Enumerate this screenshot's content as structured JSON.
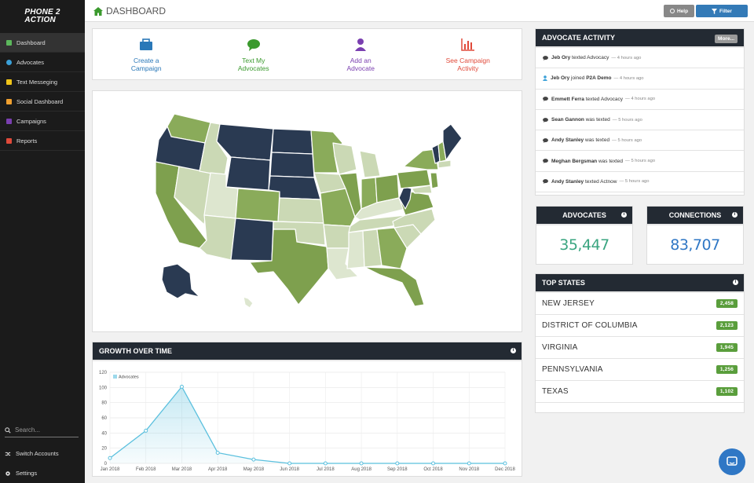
{
  "brand": {
    "line1": "PHONE 2",
    "line2": "ACTION"
  },
  "sidebar": {
    "items": [
      {
        "label": "Dashboard",
        "color": "#5cb85c",
        "active": true
      },
      {
        "label": "Advocates",
        "color": "#3aa0d8"
      },
      {
        "label": "Text Messeging",
        "color": "#f0c419"
      },
      {
        "label": "Social Dashboard",
        "color": "#f0a030"
      },
      {
        "label": "Campaigns",
        "color": "#7a3fb0"
      },
      {
        "label": "Reports",
        "color": "#e04a3a"
      }
    ],
    "search_placeholder": "Search...",
    "switch_accounts": "Switch Accounts",
    "settings": "Settings"
  },
  "header": {
    "title": "DASHBOARD",
    "help": "Help",
    "filter": "Filter"
  },
  "actions": [
    {
      "line1": "Create a",
      "line2": "Campaign",
      "color": "#2a78b8",
      "icon": "briefcase-icon"
    },
    {
      "line1": "Text My",
      "line2": "Advocates",
      "color": "#3b9a2e",
      "icon": "chat-icon"
    },
    {
      "line1": "Add an",
      "line2": "Advocate",
      "color": "#7a3fb0",
      "icon": "user-icon"
    },
    {
      "line1": "See Campaign",
      "line2": "Activity",
      "color": "#e04a3a",
      "icon": "bar-chart-icon"
    }
  ],
  "growth": {
    "title": "GROWTH OVER TIME",
    "chart_data": {
      "type": "area",
      "title": "GROWTH OVER TIME",
      "legend": "Advocates",
      "categories": [
        "Jan 2018",
        "Feb 2018",
        "Mar 2018",
        "Apr 2018",
        "May 2018",
        "Jun 2018",
        "Jul 2018",
        "Aug 2018",
        "Sep 2018",
        "Oct 2018",
        "Nov 2018",
        "Dec 2018"
      ],
      "series": [
        {
          "name": "Advocates",
          "values": [
            7,
            43,
            101,
            14,
            5,
            0,
            0,
            0,
            0,
            0,
            0,
            0
          ]
        }
      ],
      "ylim": [
        0,
        120
      ],
      "yticks": [
        0,
        20,
        40,
        60,
        80,
        100,
        120
      ],
      "color": "#5bc0de"
    }
  },
  "activity": {
    "title": "ADVOCATE ACTIVITY",
    "more": "More...",
    "rows": [
      {
        "who": "Jeb Ory",
        "what": " texted Advocacy",
        "when": "4 hours ago",
        "icon": "chat"
      },
      {
        "who": "Jeb Ory",
        "what": " joined ",
        "target": "P2A Demo",
        "when": "4 hours ago",
        "icon": "user"
      },
      {
        "who": "Emmett Ferra",
        "what": " texted Advocacy",
        "when": "4 hours ago",
        "icon": "chat"
      },
      {
        "who": "Sean Gannon",
        "what": " was texted",
        "when": "5 hours ago",
        "icon": "chat"
      },
      {
        "who": "Andy Stanley",
        "what": " was texted",
        "when": "5 hours ago",
        "icon": "chat"
      },
      {
        "who": "Meghan Bergsman",
        "what": " was texted",
        "when": "5 hours ago",
        "icon": "chat"
      },
      {
        "who": "Andy Stanley",
        "what": " texted Actnow",
        "when": "5 hours ago",
        "icon": "chat"
      }
    ]
  },
  "stats": {
    "advocates": {
      "label": "ADVOCATES",
      "value": "35,447",
      "color": "#3aa580"
    },
    "connections": {
      "label": "CONNECTIONS",
      "value": "83,707",
      "color": "#2f77c5"
    }
  },
  "top_states": {
    "title": "TOP STATES",
    "rows": [
      {
        "name": "NEW JERSEY",
        "count": "2,458"
      },
      {
        "name": "DISTRICT OF COLUMBIA",
        "count": "2,123"
      },
      {
        "name": "VIRGINIA",
        "count": "1,945"
      },
      {
        "name": "PENNSYLVANIA",
        "count": "1,256"
      },
      {
        "name": "TEXAS",
        "count": "1,102"
      }
    ]
  }
}
